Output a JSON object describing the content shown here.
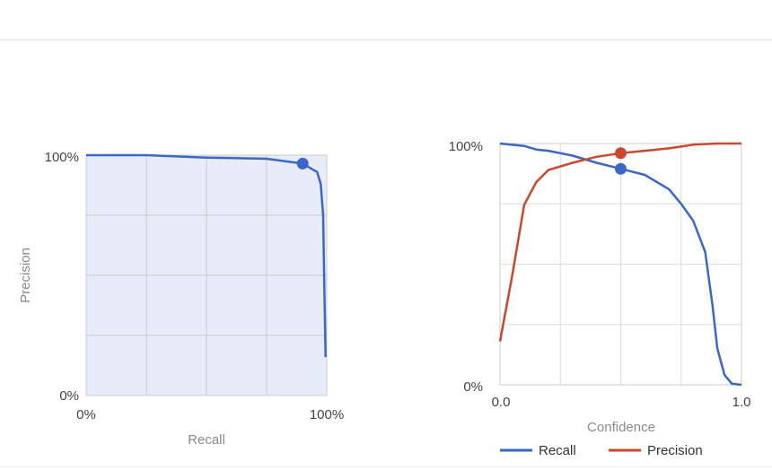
{
  "chart_data": [
    {
      "type": "area",
      "title": "",
      "xlabel": "Recall",
      "ylabel": "Precision",
      "xlim": [
        0,
        1
      ],
      "ylim": [
        0,
        1
      ],
      "x_ticks": [
        "0%",
        "100%"
      ],
      "y_ticks": [
        "0%",
        "100%"
      ],
      "grid": true,
      "fill_color": "#e8ebf8",
      "series": [
        {
          "color": "#3b67c9",
          "points": [
            [
              0.0,
              1.0
            ],
            [
              0.25,
              1.0
            ],
            [
              0.5,
              0.99
            ],
            [
              0.75,
              0.985
            ],
            [
              0.9,
              0.965
            ],
            [
              0.96,
              0.93
            ],
            [
              0.975,
              0.88
            ],
            [
              0.985,
              0.75
            ],
            [
              0.99,
              0.45
            ],
            [
              0.995,
              0.16
            ]
          ]
        }
      ],
      "marker": {
        "x": 0.9,
        "y": 0.965,
        "color": "#3b67c9"
      }
    },
    {
      "type": "line",
      "title": "",
      "xlabel": "Confidence",
      "ylabel": "",
      "xlim": [
        0,
        1
      ],
      "ylim": [
        0,
        1
      ],
      "x_ticks": [
        "0.0",
        "1.0"
      ],
      "y_ticks": [
        "0%",
        "100%"
      ],
      "grid": true,
      "legend_position": "bottom",
      "series": [
        {
          "name": "Recall",
          "color": "#3b67c9",
          "points": [
            [
              0.0,
              1.0
            ],
            [
              0.1,
              0.99
            ],
            [
              0.15,
              0.975
            ],
            [
              0.2,
              0.97
            ],
            [
              0.3,
              0.95
            ],
            [
              0.4,
              0.92
            ],
            [
              0.5,
              0.895
            ],
            [
              0.6,
              0.87
            ],
            [
              0.7,
              0.81
            ],
            [
              0.75,
              0.75
            ],
            [
              0.8,
              0.68
            ],
            [
              0.85,
              0.55
            ],
            [
              0.88,
              0.33
            ],
            [
              0.9,
              0.15
            ],
            [
              0.93,
              0.04
            ],
            [
              0.96,
              0.005
            ],
            [
              1.0,
              0.0
            ]
          ]
        },
        {
          "name": "Precision",
          "color": "#c9482e",
          "points": [
            [
              0.0,
              0.18
            ],
            [
              0.05,
              0.45
            ],
            [
              0.1,
              0.745
            ],
            [
              0.15,
              0.84
            ],
            [
              0.2,
              0.89
            ],
            [
              0.3,
              0.92
            ],
            [
              0.4,
              0.945
            ],
            [
              0.5,
              0.96
            ],
            [
              0.6,
              0.97
            ],
            [
              0.7,
              0.98
            ],
            [
              0.8,
              0.995
            ],
            [
              0.9,
              1.0
            ],
            [
              1.0,
              1.0
            ]
          ]
        }
      ],
      "markers": [
        {
          "x": 0.5,
          "y": 0.96,
          "color": "#c9482e"
        },
        {
          "x": 0.5,
          "y": 0.895,
          "color": "#3b67c9"
        }
      ]
    }
  ]
}
